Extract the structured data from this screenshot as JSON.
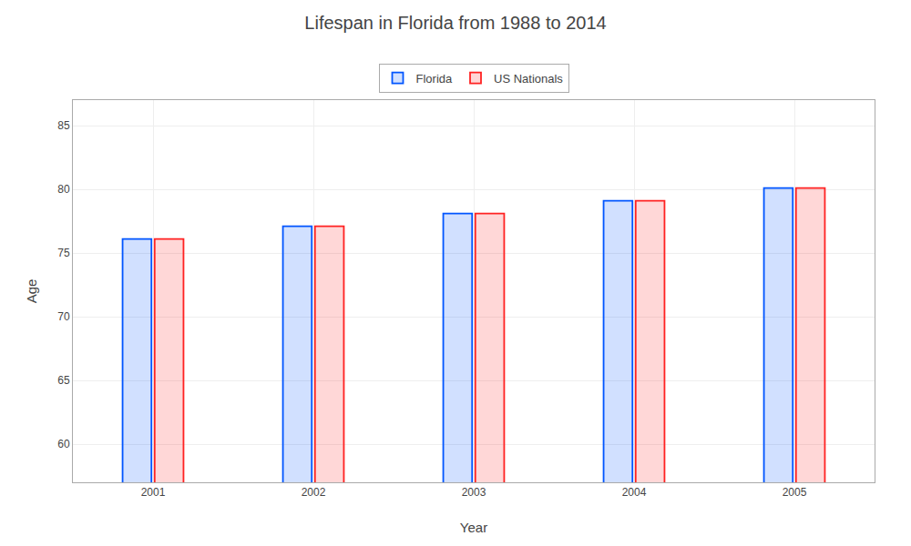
{
  "chart_data": {
    "type": "bar",
    "title": "Lifespan in Florida from 1988 to 2014",
    "x_label": "Year",
    "y_label": "Age",
    "categories": [
      "2001",
      "2002",
      "2003",
      "2004",
      "2005"
    ],
    "series": [
      {
        "name": "Florida",
        "color": "#0055ff",
        "values": [
          76.1,
          77.1,
          78.1,
          79.1,
          80.1
        ]
      },
      {
        "name": "US Nationals",
        "color": "#ff2222",
        "values": [
          76.1,
          77.1,
          78.1,
          79.1,
          80.1
        ]
      }
    ],
    "ylim": [
      57,
      87
    ],
    "yticks": [
      60,
      65,
      70,
      75,
      80,
      85
    ],
    "grid": true,
    "legend": "upper center"
  }
}
